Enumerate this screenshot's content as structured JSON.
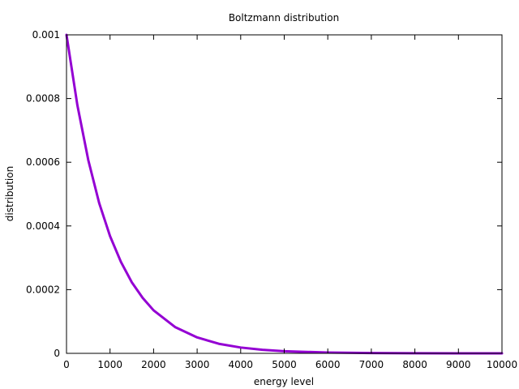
{
  "chart_data": {
    "type": "line",
    "title": "Boltzmann distribution",
    "xlabel": "energy level",
    "ylabel": "distribution",
    "xlim": [
      0,
      10000
    ],
    "ylim": [
      0,
      0.001
    ],
    "x_ticks": [
      0,
      1000,
      2000,
      3000,
      4000,
      5000,
      6000,
      7000,
      8000,
      9000,
      10000
    ],
    "x_tick_labels": [
      "0",
      "1000",
      "2000",
      "3000",
      "4000",
      "5000",
      "6000",
      "7000",
      "8000",
      "9000",
      "10000"
    ],
    "y_ticks": [
      0,
      0.0002,
      0.0004,
      0.0006,
      0.0008,
      0.001
    ],
    "y_tick_labels": [
      "0",
      "0.0002",
      "0.0004",
      "0.0006",
      "0.0008",
      "0.001"
    ],
    "grid": false,
    "legend": "none",
    "series": [
      {
        "color": "#9400d3",
        "x": [
          0,
          250,
          500,
          750,
          1000,
          1250,
          1500,
          1750,
          2000,
          2500,
          3000,
          3500,
          4000,
          4500,
          5000,
          6000,
          7000,
          8000,
          9000,
          10000
        ],
        "y": [
          0.001,
          0.000779,
          0.000607,
          0.000472,
          0.000368,
          0.000287,
          0.000223,
          0.000174,
          0.000135,
          8.2e-05,
          5e-05,
          3e-05,
          1.83e-05,
          1.11e-05,
          6.7e-06,
          2.5e-06,
          9e-07,
          3.4e-07,
          1.2e-07,
          5e-08
        ]
      }
    ]
  }
}
